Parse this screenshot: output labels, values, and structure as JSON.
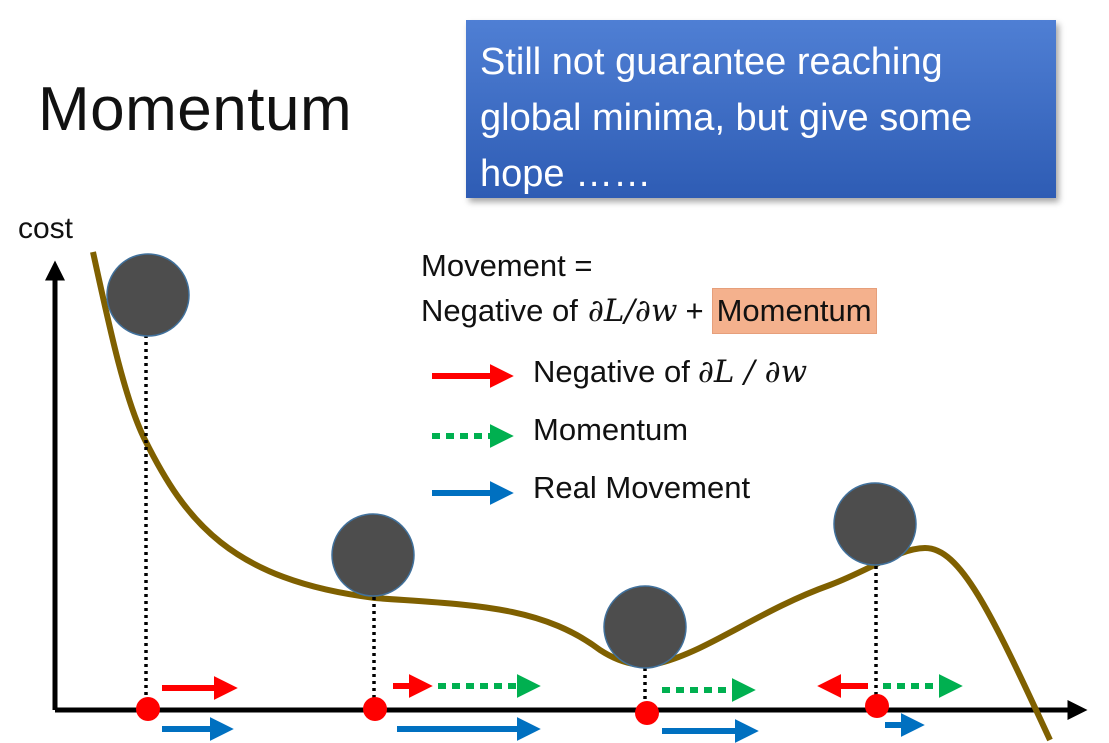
{
  "title": "Momentum",
  "callout": {
    "text": "Still not guarantee reaching global minima, but give some hope ……"
  },
  "axis": {
    "y_label": "cost"
  },
  "formula": {
    "line1": "Movement =",
    "prefix": "Negative of",
    "math": "∂L/∂w",
    "plus": "+",
    "highlight": "Momentum"
  },
  "legend": [
    {
      "label": "Negative of",
      "math": "∂L / ∂w",
      "style": "solid",
      "color": "#ff0000"
    },
    {
      "label": "Momentum",
      "math": "",
      "style": "dotted",
      "color": "#00b050"
    },
    {
      "label": "Real Movement",
      "math": "",
      "style": "solid",
      "color": "#0070c0"
    }
  ],
  "colors": {
    "curve": "#7f6000",
    "ball": "#4d4d4d",
    "ball_outline": "#41719c",
    "marker": "#ff0000",
    "callout_bg": "#3a6bc4"
  }
}
